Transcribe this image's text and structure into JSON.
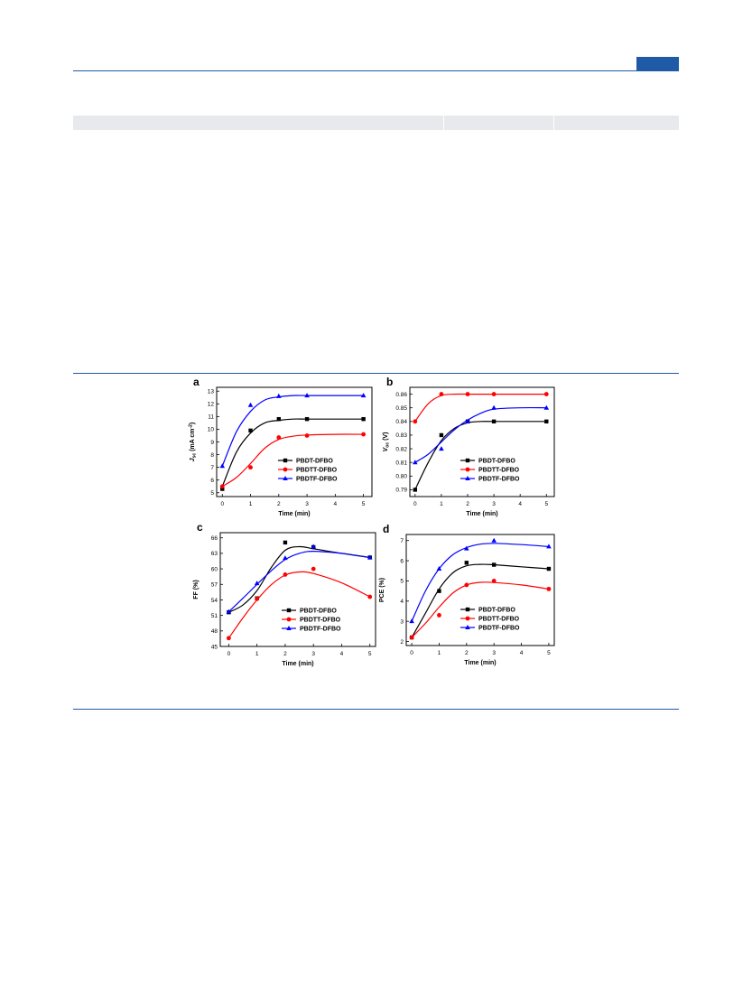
{
  "chart_data": [
    {
      "type": "scatter",
      "panel_label": "a",
      "xlabel": "Time (min)",
      "ylabel": "J",
      "ylabel_sub": "sc",
      "ylabel_unit": " (mA cm",
      "ylabel_sup": "-2",
      "ylabel_close": ")",
      "xlim": [
        -0.2,
        5.3
      ],
      "ylim": [
        4.7,
        13.3
      ],
      "xticks": [
        "0",
        "1",
        "2",
        "3",
        "4",
        "5"
      ],
      "xtick_values": [
        0,
        1,
        2,
        3,
        4,
        5
      ],
      "yticks": [
        "5",
        "6",
        "7",
        "8",
        "9",
        "10",
        "11",
        "12",
        "13"
      ],
      "ytick_values": [
        5,
        6,
        7,
        8,
        9,
        10,
        11,
        12,
        13
      ],
      "legend": "bottom-right",
      "series": [
        {
          "name": "PBDT-DFBO",
          "color": "#000000",
          "marker": "square",
          "x": [
            0,
            1,
            2,
            3,
            5
          ],
          "y": [
            5.3,
            9.9,
            10.8,
            10.8,
            10.8
          ],
          "fit_x": [
            0,
            0.5,
            1,
            1.5,
            2,
            2.5,
            3,
            4,
            5
          ],
          "fit_y": [
            5.5,
            8.2,
            9.7,
            10.5,
            10.7,
            10.8,
            10.8,
            10.8,
            10.8
          ]
        },
        {
          "name": "PBDTT-DFBO",
          "color": "#ff0000",
          "marker": "circle",
          "x": [
            0,
            1,
            2,
            3,
            5
          ],
          "y": [
            5.5,
            7.0,
            9.35,
            9.5,
            9.6
          ],
          "fit_x": [
            0,
            0.5,
            1,
            1.5,
            2,
            2.5,
            3,
            4,
            5
          ],
          "fit_y": [
            5.5,
            6.2,
            7.3,
            8.5,
            9.2,
            9.45,
            9.55,
            9.6,
            9.6
          ]
        },
        {
          "name": "PBDTF-DFBO",
          "color": "#0000ff",
          "marker": "triangle",
          "x": [
            0,
            1,
            2,
            3,
            5
          ],
          "y": [
            7.1,
            11.9,
            12.6,
            12.65,
            12.65
          ],
          "fit_x": [
            0,
            0.5,
            1,
            1.5,
            2,
            2.5,
            3,
            4,
            5
          ],
          "fit_y": [
            7.1,
            9.8,
            11.4,
            12.3,
            12.55,
            12.65,
            12.65,
            12.65,
            12.65
          ]
        }
      ]
    },
    {
      "type": "scatter",
      "panel_label": "b",
      "xlabel": "Time (min)",
      "ylabel": "V",
      "ylabel_sub": "oc",
      "ylabel_unit": " (V)",
      "ylabel_sup": "",
      "ylabel_close": "",
      "xlim": [
        -0.2,
        5.3
      ],
      "ylim": [
        0.785,
        0.865
      ],
      "xticks": [
        "0",
        "1",
        "2",
        "3",
        "4",
        "5"
      ],
      "xtick_values": [
        0,
        1,
        2,
        3,
        4,
        5
      ],
      "yticks": [
        "0.79",
        "0.80",
        "0.81",
        "0.82",
        "0.83",
        "0.84",
        "0.85",
        "0.86"
      ],
      "ytick_values": [
        0.79,
        0.8,
        0.81,
        0.82,
        0.83,
        0.84,
        0.85,
        0.86
      ],
      "legend": "bottom-right",
      "series": [
        {
          "name": "PBDT-DFBO",
          "color": "#000000",
          "marker": "square",
          "x": [
            0,
            1,
            2,
            3,
            5
          ],
          "y": [
            0.79,
            0.83,
            0.84,
            0.84,
            0.84
          ],
          "fit_x": [
            0,
            0.5,
            1,
            1.5,
            2,
            2.5,
            3,
            4,
            5
          ],
          "fit_y": [
            0.79,
            0.81,
            0.826,
            0.835,
            0.839,
            0.84,
            0.84,
            0.84,
            0.84
          ]
        },
        {
          "name": "PBDTT-DFBO",
          "color": "#ff0000",
          "marker": "circle",
          "x": [
            0,
            1,
            2,
            3,
            5
          ],
          "y": [
            0.84,
            0.86,
            0.86,
            0.86,
            0.86
          ],
          "fit_x": [
            0,
            0.5,
            1,
            1.5,
            2,
            2.5,
            3,
            4,
            5
          ],
          "fit_y": [
            0.84,
            0.853,
            0.859,
            0.86,
            0.86,
            0.86,
            0.86,
            0.86,
            0.86
          ]
        },
        {
          "name": "PBDTF-DFBO",
          "color": "#0000ff",
          "marker": "triangle",
          "x": [
            0,
            1,
            2,
            3,
            5
          ],
          "y": [
            0.81,
            0.82,
            0.84,
            0.85,
            0.85
          ],
          "fit_x": [
            0,
            0.5,
            1,
            1.5,
            2,
            2.5,
            3,
            4,
            5
          ],
          "fit_y": [
            0.81,
            0.816,
            0.825,
            0.834,
            0.841,
            0.846,
            0.849,
            0.85,
            0.85
          ]
        }
      ]
    },
    {
      "type": "scatter",
      "panel_label": "c",
      "xlabel": "Time (min)",
      "ylabel": "FF (%)",
      "ylabel_sub": "",
      "ylabel_unit": "",
      "ylabel_sup": "",
      "ylabel_close": "",
      "xlim": [
        -0.3,
        5.2
      ],
      "ylim": [
        45,
        67
      ],
      "xticks": [
        "0",
        "1",
        "2",
        "3",
        "4",
        "5"
      ],
      "xtick_values": [
        0,
        1,
        2,
        3,
        4,
        5
      ],
      "yticks": [
        "45",
        "48",
        "51",
        "54",
        "57",
        "60",
        "63",
        "66"
      ],
      "ytick_values": [
        45,
        48,
        51,
        54,
        57,
        60,
        63,
        66
      ],
      "legend": "bottom-right",
      "series": [
        {
          "name": "PBDT-DFBO",
          "color": "#000000",
          "marker": "square",
          "x": [
            0,
            1,
            2,
            3,
            5
          ],
          "y": [
            51.6,
            54.3,
            65.1,
            64.2,
            62.2
          ],
          "fit_x": [
            0,
            0.5,
            1,
            1.5,
            2,
            2.5,
            3,
            4,
            5
          ],
          "fit_y": [
            51.6,
            53.0,
            55.8,
            60.2,
            63.6,
            64.3,
            63.9,
            63.0,
            62.2
          ]
        },
        {
          "name": "PBDTT-DFBO",
          "color": "#ff0000",
          "marker": "circle",
          "x": [
            0,
            1,
            2,
            3,
            5
          ],
          "y": [
            46.6,
            54.2,
            58.9,
            60.0,
            54.6
          ],
          "fit_x": [
            0,
            0.5,
            1,
            1.5,
            2,
            2.5,
            3,
            4,
            5
          ],
          "fit_y": [
            46.6,
            50.5,
            54.0,
            56.9,
            58.8,
            59.4,
            59.1,
            57.3,
            54.6
          ]
        },
        {
          "name": "PBDTF-DFBO",
          "color": "#0000ff",
          "marker": "triangle",
          "x": [
            0,
            1,
            2,
            3,
            5
          ],
          "y": [
            51.7,
            57.2,
            62.1,
            64.3,
            62.2
          ],
          "fit_x": [
            0,
            0.5,
            1,
            1.5,
            2,
            2.5,
            3,
            4,
            5
          ],
          "fit_y": [
            51.7,
            54.3,
            57.0,
            59.6,
            61.8,
            63.0,
            63.4,
            63.0,
            62.2
          ]
        }
      ]
    },
    {
      "type": "scatter",
      "panel_label": "d",
      "xlabel": "Time (min)",
      "ylabel": "PCE (%)",
      "ylabel_sub": "",
      "ylabel_unit": "",
      "ylabel_sup": "",
      "ylabel_close": "",
      "xlim": [
        -0.2,
        5.2
      ],
      "ylim": [
        1.8,
        7.3
      ],
      "xticks": [
        "0",
        "1",
        "2",
        "3",
        "4",
        "5"
      ],
      "xtick_values": [
        0,
        1,
        2,
        3,
        4,
        5
      ],
      "yticks": [
        "2",
        "3",
        "4",
        "5",
        "6",
        "7"
      ],
      "ytick_values": [
        2,
        3,
        4,
        5,
        6,
        7
      ],
      "legend": "bottom-right",
      "series": [
        {
          "name": "PBDT-DFBO",
          "color": "#000000",
          "marker": "square",
          "x": [
            0,
            1,
            2,
            3,
            5
          ],
          "y": [
            2.2,
            4.5,
            5.9,
            5.8,
            5.6
          ],
          "fit_x": [
            0,
            0.5,
            1,
            1.5,
            2,
            2.5,
            3,
            4,
            5
          ],
          "fit_y": [
            2.2,
            3.4,
            4.6,
            5.4,
            5.75,
            5.82,
            5.8,
            5.7,
            5.6
          ]
        },
        {
          "name": "PBDTT-DFBO",
          "color": "#ff0000",
          "marker": "circle",
          "x": [
            0,
            1,
            2,
            3,
            5
          ],
          "y": [
            2.2,
            3.3,
            4.8,
            5.0,
            4.6
          ],
          "fit_x": [
            0,
            0.5,
            1,
            1.5,
            2,
            2.5,
            3,
            4,
            5
          ],
          "fit_y": [
            2.2,
            2.9,
            3.7,
            4.4,
            4.8,
            4.93,
            4.92,
            4.8,
            4.6
          ]
        },
        {
          "name": "PBDTF-DFBO",
          "color": "#0000ff",
          "marker": "triangle",
          "x": [
            0,
            1,
            2,
            3,
            5
          ],
          "y": [
            3.0,
            5.6,
            6.6,
            7.0,
            6.7
          ],
          "fit_x": [
            0,
            0.5,
            1,
            1.5,
            2,
            2.5,
            3,
            4,
            5
          ],
          "fit_y": [
            3.0,
            4.5,
            5.6,
            6.3,
            6.65,
            6.82,
            6.86,
            6.8,
            6.7
          ]
        }
      ]
    }
  ]
}
